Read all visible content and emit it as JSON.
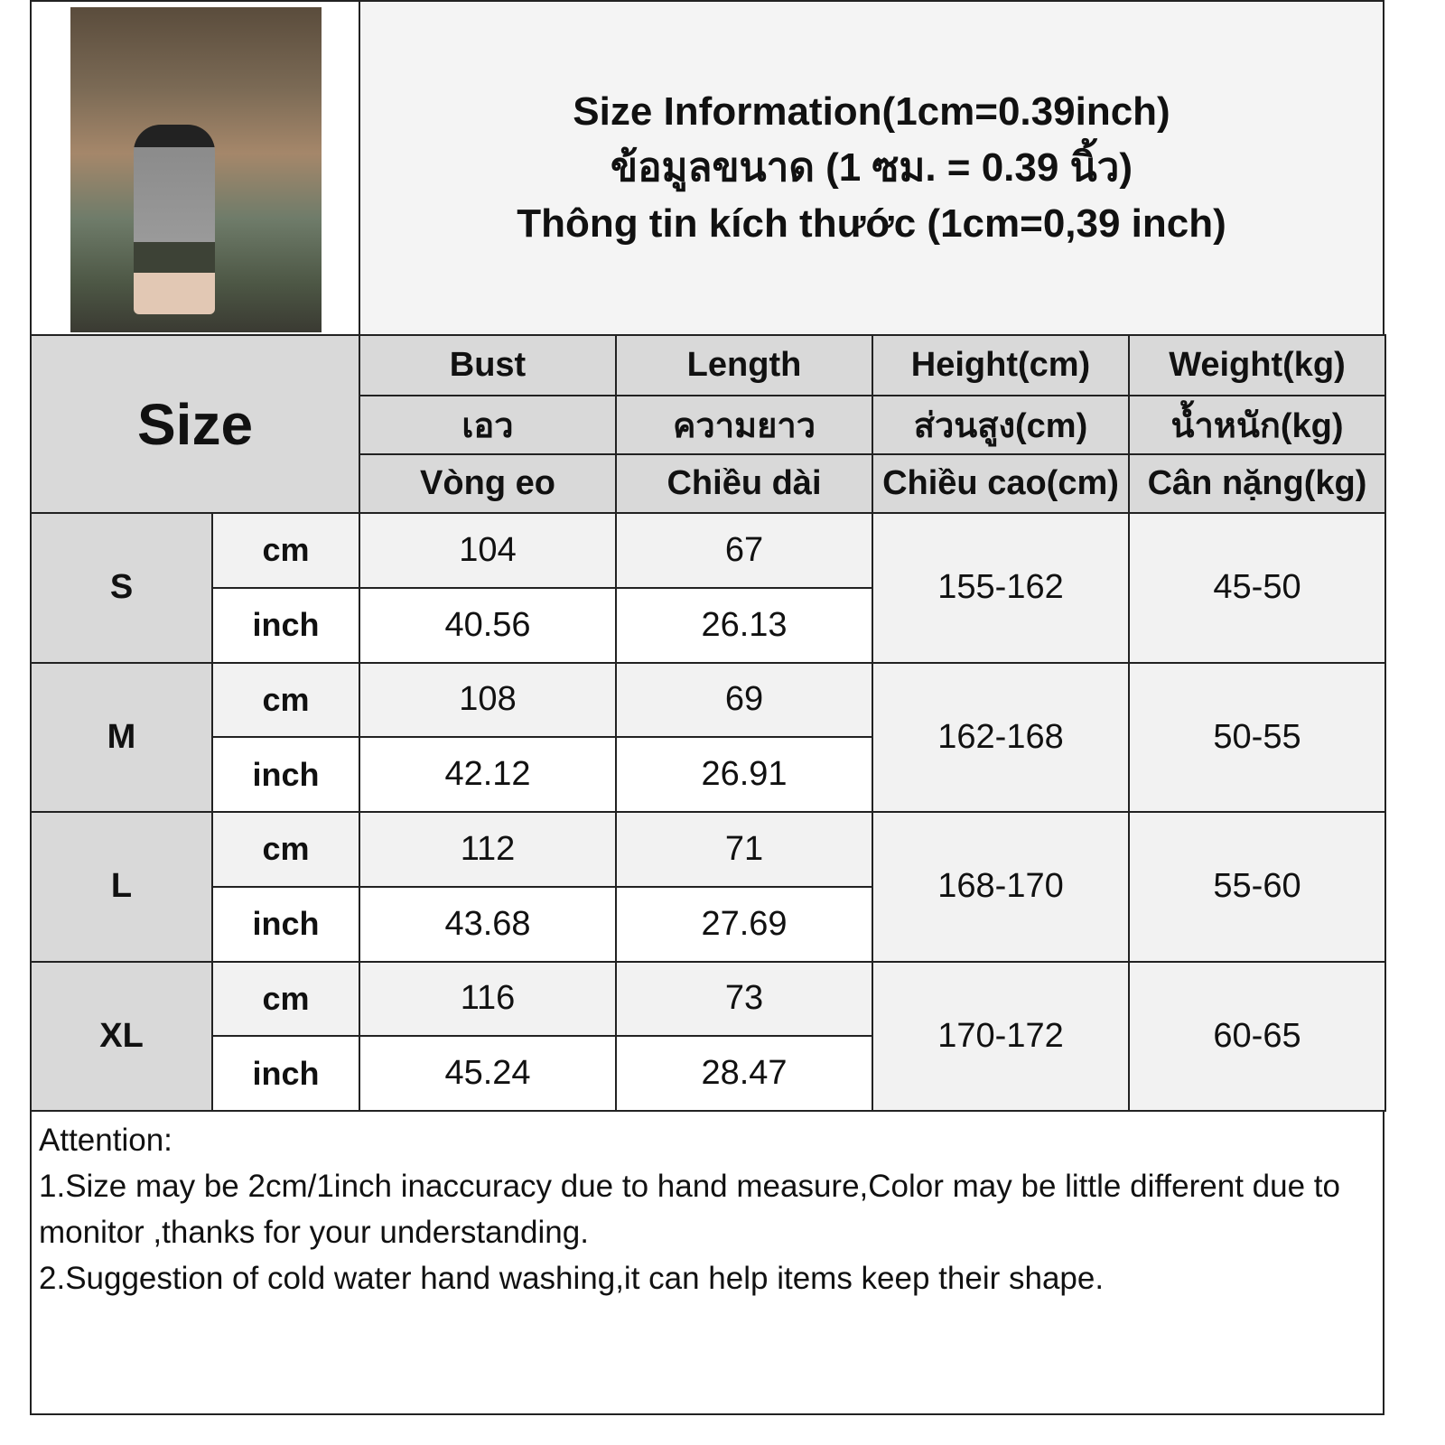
{
  "title": {
    "line_en": "Size Information(1cm=0.39inch)",
    "line_th": "ข้อมูลขนาด (1 ซม. = 0.39 นิ้ว)",
    "line_vi": "Thông tin kích thước (1cm=0,39 inch)"
  },
  "photo": {
    "alt": "model wearing grey striped long-sleeve shirt"
  },
  "header": {
    "size_label": "Size",
    "columns": [
      {
        "en": "Bust",
        "th": "เอว",
        "vi": "Vòng eo"
      },
      {
        "en": "Length",
        "th": "ความยาว",
        "vi": "Chiều dài"
      },
      {
        "en": "Height(cm)",
        "th": "ส่วนสูง(cm)",
        "vi": "Chiều cao(cm)"
      },
      {
        "en": "Weight(kg)",
        "th": "น้ำหนัก(kg)",
        "vi": "Cân nặng(kg)"
      }
    ]
  },
  "units": {
    "cm": "cm",
    "inch": "inch"
  },
  "rows": [
    {
      "size": "S",
      "bust_cm": "104",
      "length_cm": "67",
      "bust_inch": "40.56",
      "length_inch": "26.13",
      "height": "155-162",
      "weight": "45-50"
    },
    {
      "size": "M",
      "bust_cm": "108",
      "length_cm": "69",
      "bust_inch": "42.12",
      "length_inch": "26.91",
      "height": "162-168",
      "weight": "50-55"
    },
    {
      "size": "L",
      "bust_cm": "112",
      "length_cm": "71",
      "bust_inch": "43.68",
      "length_inch": "27.69",
      "height": "168-170",
      "weight": "55-60"
    },
    {
      "size": "XL",
      "bust_cm": "116",
      "length_cm": "73",
      "bust_inch": "45.24",
      "length_inch": "28.47",
      "height": "170-172",
      "weight": "60-65"
    }
  ],
  "notes": {
    "heading": "Attention:",
    "items": [
      "1.Size may be 2cm/1inch inaccuracy due to hand measure,Color may be little different due to monitor ,thanks for your understanding.",
      "2.Suggestion of cold water hand washing,it can help items keep their shape."
    ]
  },
  "colors": {
    "header_bg": "#d9d9d9",
    "cm_row_bg": "#f2f2f2",
    "inch_row_bg": "#ffffff",
    "border": "#222222"
  }
}
